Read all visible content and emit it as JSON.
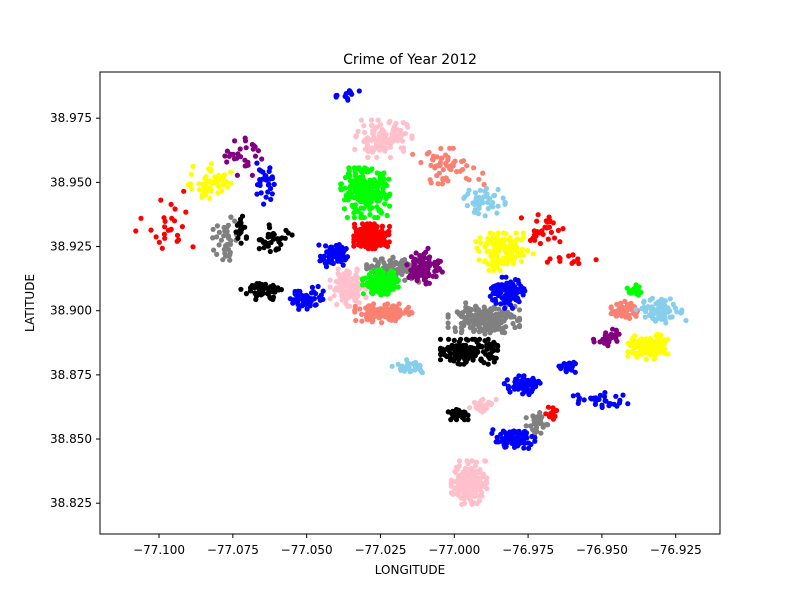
{
  "chart_data": {
    "type": "scatter",
    "title": "Crime of Year 2012",
    "xlabel": "LONGITUDE",
    "ylabel": "LATITUDE",
    "xlim": [
      -77.12,
      -76.91
    ],
    "ylim": [
      38.813,
      38.993
    ],
    "xticks": [
      -77.1,
      -77.075,
      -77.05,
      -77.025,
      -77.0,
      -76.975,
      -76.95,
      -76.925
    ],
    "xtick_labels": [
      "−77.100",
      "−77.075",
      "−77.050",
      "−77.025",
      "−77.000",
      "−76.975",
      "−76.950",
      "−76.925"
    ],
    "yticks": [
      38.825,
      38.85,
      38.875,
      38.9,
      38.925,
      38.95,
      38.975
    ],
    "ytick_labels": [
      "38.825",
      "38.850",
      "38.875",
      "38.900",
      "38.925",
      "38.950",
      "38.975"
    ],
    "grid": false,
    "legend": "none",
    "clusters": [
      {
        "color": "#ff0000",
        "center": [
          -77.097,
          38.932
        ],
        "spread": [
          0.009,
          0.012
        ],
        "count": 26
      },
      {
        "color": "#ffff00",
        "center": [
          -77.083,
          38.95
        ],
        "spread": [
          0.006,
          0.006
        ],
        "count": 55
      },
      {
        "color": "#800080",
        "center": [
          -77.071,
          38.96
        ],
        "spread": [
          0.007,
          0.006
        ],
        "count": 30
      },
      {
        "color": "#0000ff",
        "center": [
          -77.064,
          38.95
        ],
        "spread": [
          0.003,
          0.007
        ],
        "count": 30
      },
      {
        "color": "#808080",
        "center": [
          -77.077,
          38.928
        ],
        "spread": [
          0.004,
          0.007
        ],
        "count": 40
      },
      {
        "color": "#000000",
        "center": [
          -77.065,
          38.908
        ],
        "spread": [
          0.006,
          0.003
        ],
        "count": 55
      },
      {
        "color": "#000000",
        "center": [
          -77.06,
          38.928
        ],
        "spread": [
          0.005,
          0.005
        ],
        "count": 35
      },
      {
        "color": "#000000",
        "center": [
          -77.072,
          38.932
        ],
        "spread": [
          0.002,
          0.005
        ],
        "count": 20
      },
      {
        "color": "#0000ff",
        "center": [
          -77.05,
          38.905
        ],
        "spread": [
          0.005,
          0.004
        ],
        "count": 60
      },
      {
        "color": "#0000ff",
        "center": [
          -77.041,
          38.922
        ],
        "spread": [
          0.004,
          0.004
        ],
        "count": 60
      },
      {
        "color": "#ffc0cb",
        "center": [
          -77.036,
          38.909
        ],
        "spread": [
          0.005,
          0.006
        ],
        "count": 130
      },
      {
        "color": "#0000ff",
        "center": [
          -77.037,
          38.984
        ],
        "spread": [
          0.004,
          0.003
        ],
        "count": 15
      },
      {
        "color": "#ffc0cb",
        "center": [
          -77.024,
          38.967
        ],
        "spread": [
          0.008,
          0.006
        ],
        "count": 120
      },
      {
        "color": "#00ff00",
        "center": [
          -77.03,
          38.946
        ],
        "spread": [
          0.007,
          0.008
        ],
        "count": 240
      },
      {
        "color": "#ff0000",
        "center": [
          -77.028,
          38.929
        ],
        "spread": [
          0.005,
          0.004
        ],
        "count": 250
      },
      {
        "color": "#808080",
        "center": [
          -77.02,
          38.916
        ],
        "spread": [
          0.008,
          0.004
        ],
        "count": 120
      },
      {
        "color": "#00ff00",
        "center": [
          -77.025,
          38.911
        ],
        "spread": [
          0.005,
          0.004
        ],
        "count": 150
      },
      {
        "color": "#fa8072",
        "center": [
          -77.024,
          38.899
        ],
        "spread": [
          0.008,
          0.003
        ],
        "count": 140
      },
      {
        "color": "#fa8072",
        "center": [
          -77.002,
          38.956
        ],
        "spread": [
          0.01,
          0.006
        ],
        "count": 55
      },
      {
        "color": "#87ceeb",
        "center": [
          -76.99,
          38.943
        ],
        "spread": [
          0.006,
          0.005
        ],
        "count": 45
      },
      {
        "color": "#800080",
        "center": [
          -77.01,
          38.917
        ],
        "spread": [
          0.005,
          0.006
        ],
        "count": 90
      },
      {
        "color": "#ffff00",
        "center": [
          -76.983,
          38.923
        ],
        "spread": [
          0.008,
          0.006
        ],
        "count": 130
      },
      {
        "color": "#ff0000",
        "center": [
          -76.97,
          38.932
        ],
        "spread": [
          0.006,
          0.006
        ],
        "count": 30
      },
      {
        "color": "#ff0000",
        "center": [
          -76.96,
          38.92
        ],
        "spread": [
          0.007,
          0.002
        ],
        "count": 12
      },
      {
        "color": "#808080",
        "center": [
          -76.99,
          38.897
        ],
        "spread": [
          0.01,
          0.005
        ],
        "count": 200
      },
      {
        "color": "#0000ff",
        "center": [
          -76.982,
          38.907
        ],
        "spread": [
          0.005,
          0.005
        ],
        "count": 110
      },
      {
        "color": "#000000",
        "center": [
          -76.995,
          38.884
        ],
        "spread": [
          0.008,
          0.004
        ],
        "count": 170
      },
      {
        "color": "#87ceeb",
        "center": [
          -77.015,
          38.878
        ],
        "spread": [
          0.005,
          0.003
        ],
        "count": 30
      },
      {
        "color": "#0000ff",
        "center": [
          -76.977,
          38.871
        ],
        "spread": [
          0.005,
          0.003
        ],
        "count": 70
      },
      {
        "color": "#0000ff",
        "center": [
          -76.962,
          38.878
        ],
        "spread": [
          0.003,
          0.002
        ],
        "count": 20
      },
      {
        "color": "#ffc0cb",
        "center": [
          -76.99,
          38.863
        ],
        "spread": [
          0.004,
          0.002
        ],
        "count": 30
      },
      {
        "color": "#000000",
        "center": [
          -76.999,
          38.86
        ],
        "spread": [
          0.003,
          0.002
        ],
        "count": 40
      },
      {
        "color": "#808080",
        "center": [
          -76.972,
          38.856
        ],
        "spread": [
          0.003,
          0.004
        ],
        "count": 40
      },
      {
        "color": "#ff0000",
        "center": [
          -76.967,
          38.86
        ],
        "spread": [
          0.002,
          0.002
        ],
        "count": 15
      },
      {
        "color": "#0000ff",
        "center": [
          -76.98,
          38.85
        ],
        "spread": [
          0.006,
          0.003
        ],
        "count": 90
      },
      {
        "color": "#0000ff",
        "center": [
          -76.95,
          38.865
        ],
        "spread": [
          0.008,
          0.003
        ],
        "count": 30
      },
      {
        "color": "#ffc0cb",
        "center": [
          -76.995,
          38.833
        ],
        "spread": [
          0.005,
          0.007
        ],
        "count": 170
      },
      {
        "color": "#800080",
        "center": [
          -76.948,
          38.89
        ],
        "spread": [
          0.004,
          0.003
        ],
        "count": 30
      },
      {
        "color": "#fa8072",
        "center": [
          -76.942,
          38.9
        ],
        "spread": [
          0.004,
          0.003
        ],
        "count": 50
      },
      {
        "color": "#00ff00",
        "center": [
          -76.939,
          38.908
        ],
        "spread": [
          0.002,
          0.002
        ],
        "count": 20
      },
      {
        "color": "#87ceeb",
        "center": [
          -76.93,
          38.9
        ],
        "spread": [
          0.007,
          0.004
        ],
        "count": 80
      },
      {
        "color": "#ffff00",
        "center": [
          -76.934,
          38.886
        ],
        "spread": [
          0.006,
          0.004
        ],
        "count": 110
      }
    ]
  }
}
